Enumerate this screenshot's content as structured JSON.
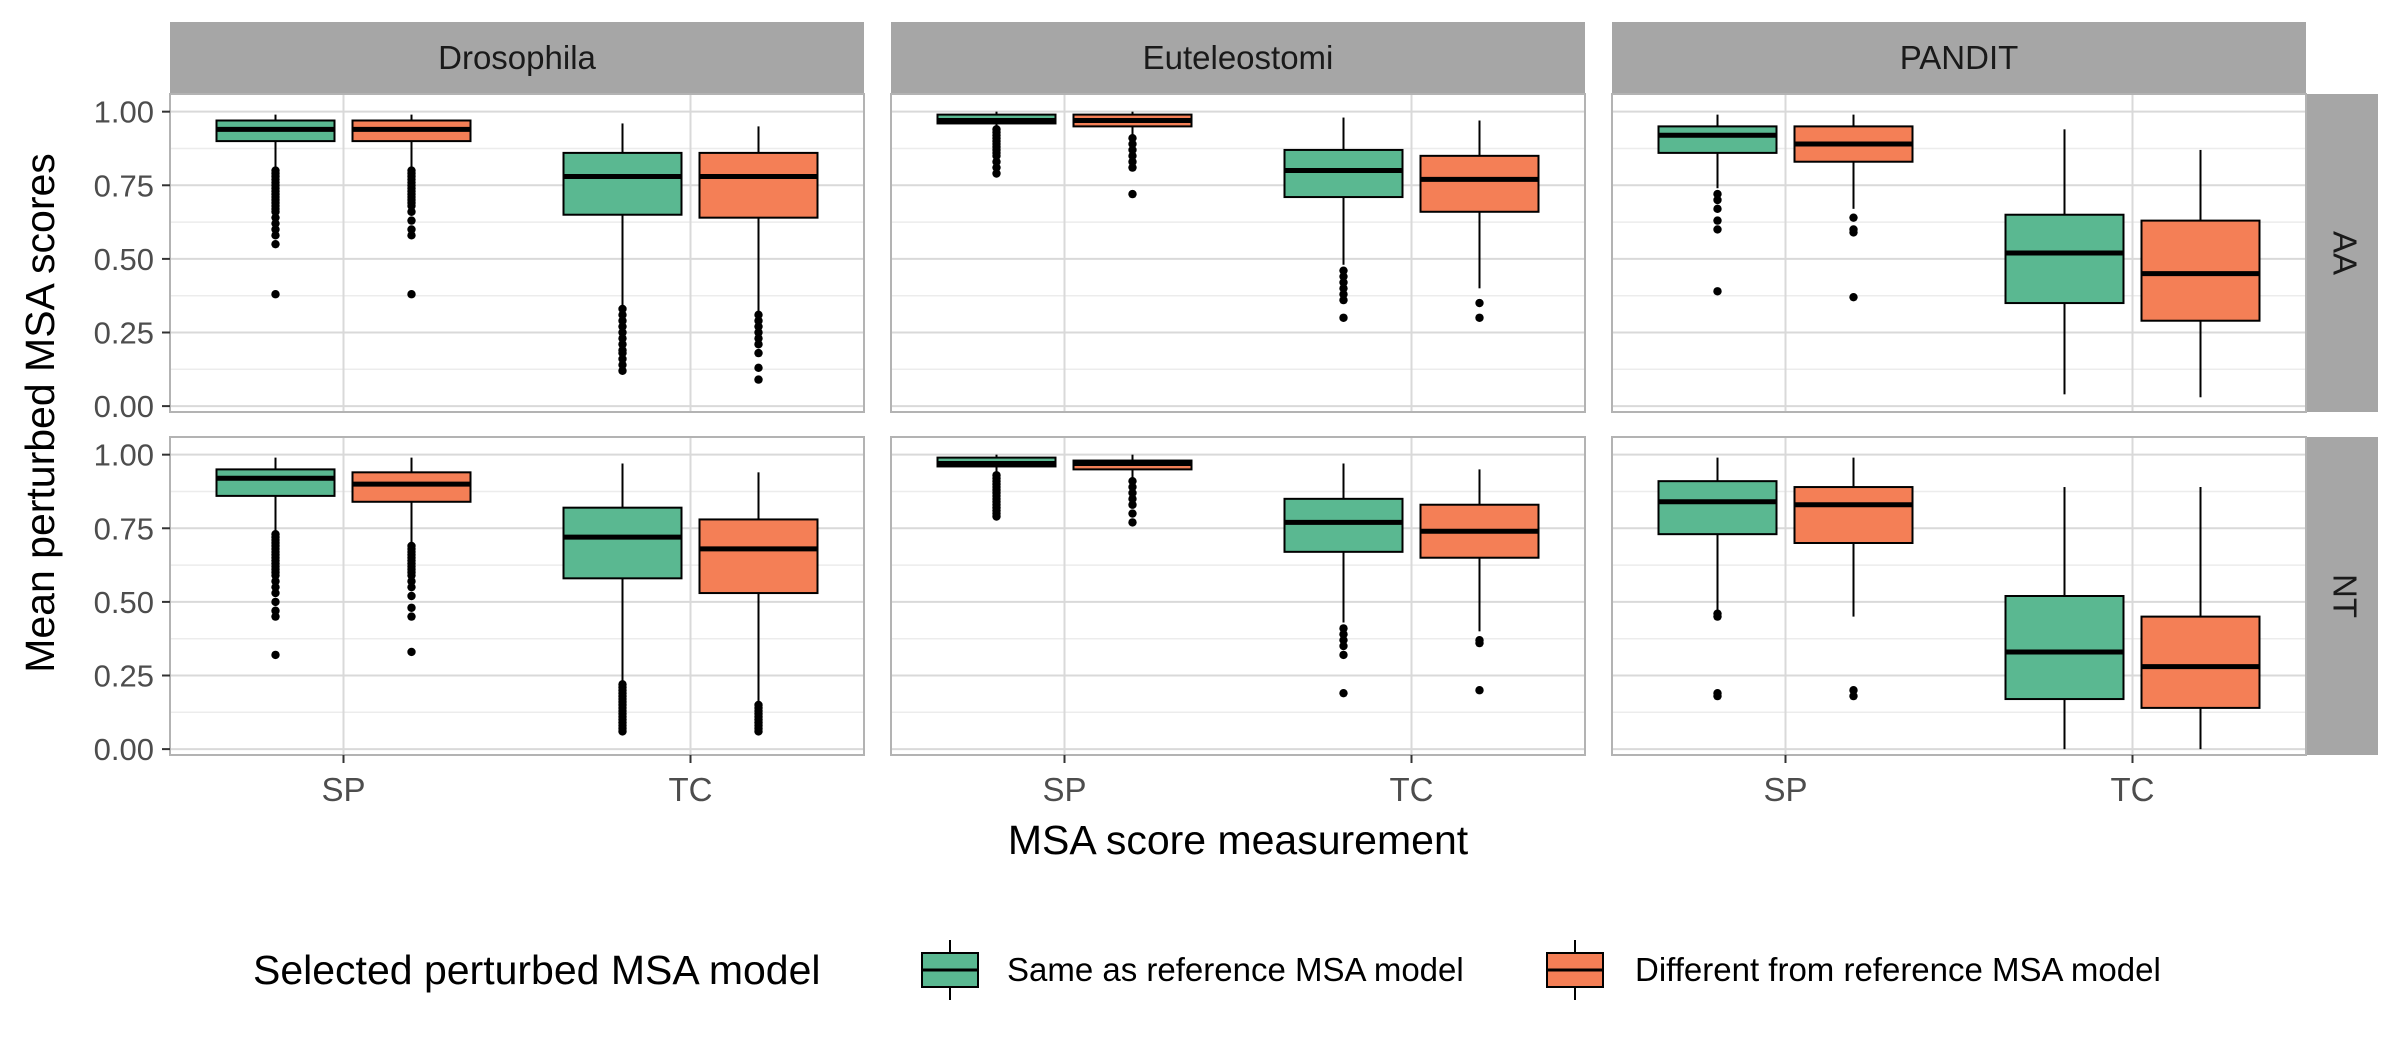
{
  "chart_data": {
    "type": "box",
    "ylabel": "Mean perturbed MSA scores",
    "xlabel": "MSA score measurement",
    "categories": [
      "SP",
      "TC"
    ],
    "ylim": [
      -0.02,
      1.06
    ],
    "yticks": [
      0.0,
      0.25,
      0.5,
      0.75,
      1.0
    ],
    "ytick_labels": [
      "0.00",
      "0.25",
      "0.50",
      "0.75",
      "1.00"
    ],
    "grid": true,
    "legend": {
      "title": "Selected perturbed MSA model",
      "position": "bottom",
      "entries": [
        {
          "key": "same",
          "label": "Same as reference MSA model",
          "color": "#5ab891"
        },
        {
          "key": "diff",
          "label": "Different from reference MSA model",
          "color": "#f47f56"
        }
      ]
    },
    "facet_cols": [
      "Drosophila",
      "Euteleostomi",
      "PANDIT"
    ],
    "facet_rows": [
      "AA",
      "NT"
    ],
    "panels": [
      {
        "col": "Drosophila",
        "row": "AA",
        "boxes": [
          {
            "category": "SP",
            "group": "same",
            "whisker_low": 0.81,
            "q1": 0.9,
            "median": 0.94,
            "q3": 0.97,
            "whisker_high": 0.99,
            "outliers": [
              0.8,
              0.79,
              0.78,
              0.77,
              0.76,
              0.75,
              0.74,
              0.73,
              0.72,
              0.71,
              0.7,
              0.69,
              0.68,
              0.67,
              0.66,
              0.64,
              0.62,
              0.6,
              0.58,
              0.55,
              0.38
            ]
          },
          {
            "category": "SP",
            "group": "diff",
            "whisker_low": 0.81,
            "q1": 0.9,
            "median": 0.94,
            "q3": 0.97,
            "whisker_high": 0.99,
            "outliers": [
              0.8,
              0.79,
              0.78,
              0.77,
              0.76,
              0.75,
              0.74,
              0.73,
              0.72,
              0.71,
              0.7,
              0.69,
              0.68,
              0.66,
              0.63,
              0.6,
              0.58,
              0.38
            ]
          },
          {
            "category": "TC",
            "group": "same",
            "whisker_low": 0.34,
            "q1": 0.65,
            "median": 0.78,
            "q3": 0.86,
            "whisker_high": 0.96,
            "outliers": [
              0.33,
              0.31,
              0.29,
              0.27,
              0.25,
              0.23,
              0.21,
              0.19,
              0.18,
              0.16,
              0.14,
              0.12
            ]
          },
          {
            "category": "TC",
            "group": "diff",
            "whisker_low": 0.32,
            "q1": 0.64,
            "median": 0.78,
            "q3": 0.86,
            "whisker_high": 0.95,
            "outliers": [
              0.31,
              0.29,
              0.27,
              0.25,
              0.23,
              0.21,
              0.18,
              0.13,
              0.09
            ]
          }
        ]
      },
      {
        "col": "Euteleostomi",
        "row": "AA",
        "boxes": [
          {
            "category": "SP",
            "group": "same",
            "whisker_low": 0.94,
            "q1": 0.96,
            "median": 0.97,
            "q3": 0.99,
            "whisker_high": 1.0,
            "outliers": [
              0.94,
              0.93,
              0.92,
              0.91,
              0.9,
              0.89,
              0.88,
              0.87,
              0.86,
              0.85,
              0.83,
              0.81,
              0.79
            ]
          },
          {
            "category": "SP",
            "group": "diff",
            "whisker_low": 0.92,
            "q1": 0.95,
            "median": 0.97,
            "q3": 0.99,
            "whisker_high": 1.0,
            "outliers": [
              0.91,
              0.89,
              0.87,
              0.85,
              0.83,
              0.81,
              0.72
            ]
          },
          {
            "category": "TC",
            "group": "same",
            "whisker_low": 0.48,
            "q1": 0.71,
            "median": 0.8,
            "q3": 0.87,
            "whisker_high": 0.98,
            "outliers": [
              0.46,
              0.44,
              0.42,
              0.4,
              0.38,
              0.36,
              0.3
            ]
          },
          {
            "category": "TC",
            "group": "diff",
            "whisker_low": 0.4,
            "q1": 0.66,
            "median": 0.77,
            "q3": 0.85,
            "whisker_high": 0.97,
            "outliers": [
              0.35,
              0.3
            ]
          }
        ]
      },
      {
        "col": "PANDIT",
        "row": "AA",
        "boxes": [
          {
            "category": "SP",
            "group": "same",
            "whisker_low": 0.74,
            "q1": 0.86,
            "median": 0.92,
            "q3": 0.95,
            "whisker_high": 0.99,
            "outliers": [
              0.72,
              0.7,
              0.67,
              0.63,
              0.6,
              0.39
            ]
          },
          {
            "category": "SP",
            "group": "diff",
            "whisker_low": 0.67,
            "q1": 0.83,
            "median": 0.89,
            "q3": 0.95,
            "whisker_high": 0.99,
            "outliers": [
              0.64,
              0.6,
              0.59,
              0.37
            ]
          },
          {
            "category": "TC",
            "group": "same",
            "whisker_low": 0.04,
            "q1": 0.35,
            "median": 0.52,
            "q3": 0.65,
            "whisker_high": 0.94,
            "outliers": []
          },
          {
            "category": "TC",
            "group": "diff",
            "whisker_low": 0.03,
            "q1": 0.29,
            "median": 0.45,
            "q3": 0.63,
            "whisker_high": 0.87,
            "outliers": []
          }
        ]
      },
      {
        "col": "Drosophila",
        "row": "NT",
        "boxes": [
          {
            "category": "SP",
            "group": "same",
            "whisker_low": 0.74,
            "q1": 0.86,
            "median": 0.92,
            "q3": 0.95,
            "whisker_high": 0.99,
            "outliers": [
              0.73,
              0.72,
              0.71,
              0.7,
              0.69,
              0.68,
              0.67,
              0.66,
              0.65,
              0.64,
              0.63,
              0.62,
              0.61,
              0.6,
              0.59,
              0.57,
              0.55,
              0.53,
              0.5,
              0.47,
              0.45,
              0.32
            ]
          },
          {
            "category": "SP",
            "group": "diff",
            "whisker_low": 0.7,
            "q1": 0.84,
            "median": 0.9,
            "q3": 0.94,
            "whisker_high": 0.99,
            "outliers": [
              0.69,
              0.68,
              0.67,
              0.66,
              0.65,
              0.64,
              0.63,
              0.62,
              0.61,
              0.6,
              0.59,
              0.57,
              0.55,
              0.52,
              0.48,
              0.45,
              0.33
            ]
          },
          {
            "category": "TC",
            "group": "same",
            "whisker_low": 0.23,
            "q1": 0.58,
            "median": 0.72,
            "q3": 0.82,
            "whisker_high": 0.97,
            "outliers": [
              0.22,
              0.21,
              0.2,
              0.19,
              0.18,
              0.17,
              0.16,
              0.15,
              0.14,
              0.13,
              0.12,
              0.11,
              0.1,
              0.09,
              0.08,
              0.07,
              0.06
            ]
          },
          {
            "category": "TC",
            "group": "diff",
            "whisker_low": 0.16,
            "q1": 0.53,
            "median": 0.68,
            "q3": 0.78,
            "whisker_high": 0.94,
            "outliers": [
              0.15,
              0.14,
              0.13,
              0.12,
              0.11,
              0.1,
              0.09,
              0.08,
              0.07,
              0.06
            ]
          }
        ]
      },
      {
        "col": "Euteleostomi",
        "row": "NT",
        "boxes": [
          {
            "category": "SP",
            "group": "same",
            "whisker_low": 0.93,
            "q1": 0.96,
            "median": 0.97,
            "q3": 0.99,
            "whisker_high": 1.0,
            "outliers": [
              0.93,
              0.92,
              0.91,
              0.9,
              0.89,
              0.88,
              0.87,
              0.86,
              0.85,
              0.84,
              0.83,
              0.82,
              0.81,
              0.8,
              0.79
            ]
          },
          {
            "category": "SP",
            "group": "diff",
            "whisker_low": 0.92,
            "q1": 0.95,
            "median": 0.97,
            "q3": 0.98,
            "whisker_high": 1.0,
            "outliers": [
              0.91,
              0.89,
              0.87,
              0.85,
              0.83,
              0.8,
              0.77
            ]
          },
          {
            "category": "TC",
            "group": "same",
            "whisker_low": 0.43,
            "q1": 0.67,
            "median": 0.77,
            "q3": 0.85,
            "whisker_high": 0.97,
            "outliers": [
              0.41,
              0.39,
              0.37,
              0.35,
              0.32,
              0.19
            ]
          },
          {
            "category": "TC",
            "group": "diff",
            "whisker_low": 0.4,
            "q1": 0.65,
            "median": 0.74,
            "q3": 0.83,
            "whisker_high": 0.95,
            "outliers": [
              0.37,
              0.36,
              0.2
            ]
          }
        ]
      },
      {
        "col": "PANDIT",
        "row": "NT",
        "boxes": [
          {
            "category": "SP",
            "group": "same",
            "whisker_low": 0.47,
            "q1": 0.73,
            "median": 0.84,
            "q3": 0.91,
            "whisker_high": 0.99,
            "outliers": [
              0.46,
              0.45,
              0.19,
              0.18
            ]
          },
          {
            "category": "SP",
            "group": "diff",
            "whisker_low": 0.45,
            "q1": 0.7,
            "median": 0.83,
            "q3": 0.89,
            "whisker_high": 0.99,
            "outliers": [
              0.2,
              0.18
            ]
          },
          {
            "category": "TC",
            "group": "same",
            "whisker_low": 0.0,
            "q1": 0.17,
            "median": 0.33,
            "q3": 0.52,
            "whisker_high": 0.89,
            "outliers": []
          },
          {
            "category": "TC",
            "group": "diff",
            "whisker_low": 0.0,
            "q1": 0.14,
            "median": 0.28,
            "q3": 0.45,
            "whisker_high": 0.89,
            "outliers": []
          }
        ]
      }
    ]
  }
}
